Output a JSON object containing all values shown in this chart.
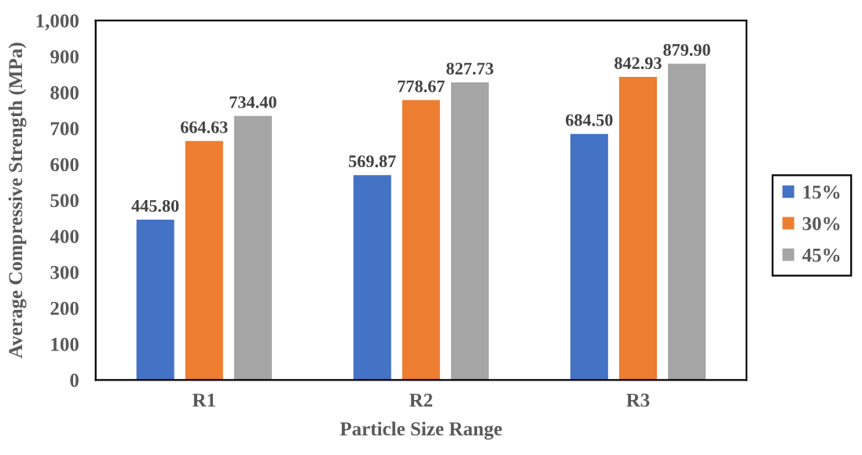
{
  "chart_data": {
    "type": "bar",
    "xlabel": "Particle Size Range",
    "ylabel": "Average Compressive Strength (MPa)",
    "categories": [
      "R1",
      "R2",
      "R3"
    ],
    "series": [
      {
        "name": "15%",
        "color": "#4472c4",
        "values": [
          445.8,
          569.87,
          684.5
        ],
        "value_labels": [
          "445.80",
          "569.87",
          "684.50"
        ]
      },
      {
        "name": "30%",
        "color": "#ed7d31",
        "values": [
          664.63,
          778.67,
          842.93
        ],
        "value_labels": [
          "664.63",
          "778.67",
          "842.93"
        ]
      },
      {
        "name": "45%",
        "color": "#a5a5a5",
        "values": [
          734.4,
          827.73,
          879.9
        ],
        "value_labels": [
          "734.40",
          "827.73",
          "879.90"
        ]
      }
    ],
    "ylim": [
      0,
      1000
    ],
    "yticks": [
      0,
      100,
      200,
      300,
      400,
      500,
      600,
      700,
      800,
      900,
      {
        "value": 1000,
        "label": "1,000"
      }
    ],
    "legend": "right"
  }
}
